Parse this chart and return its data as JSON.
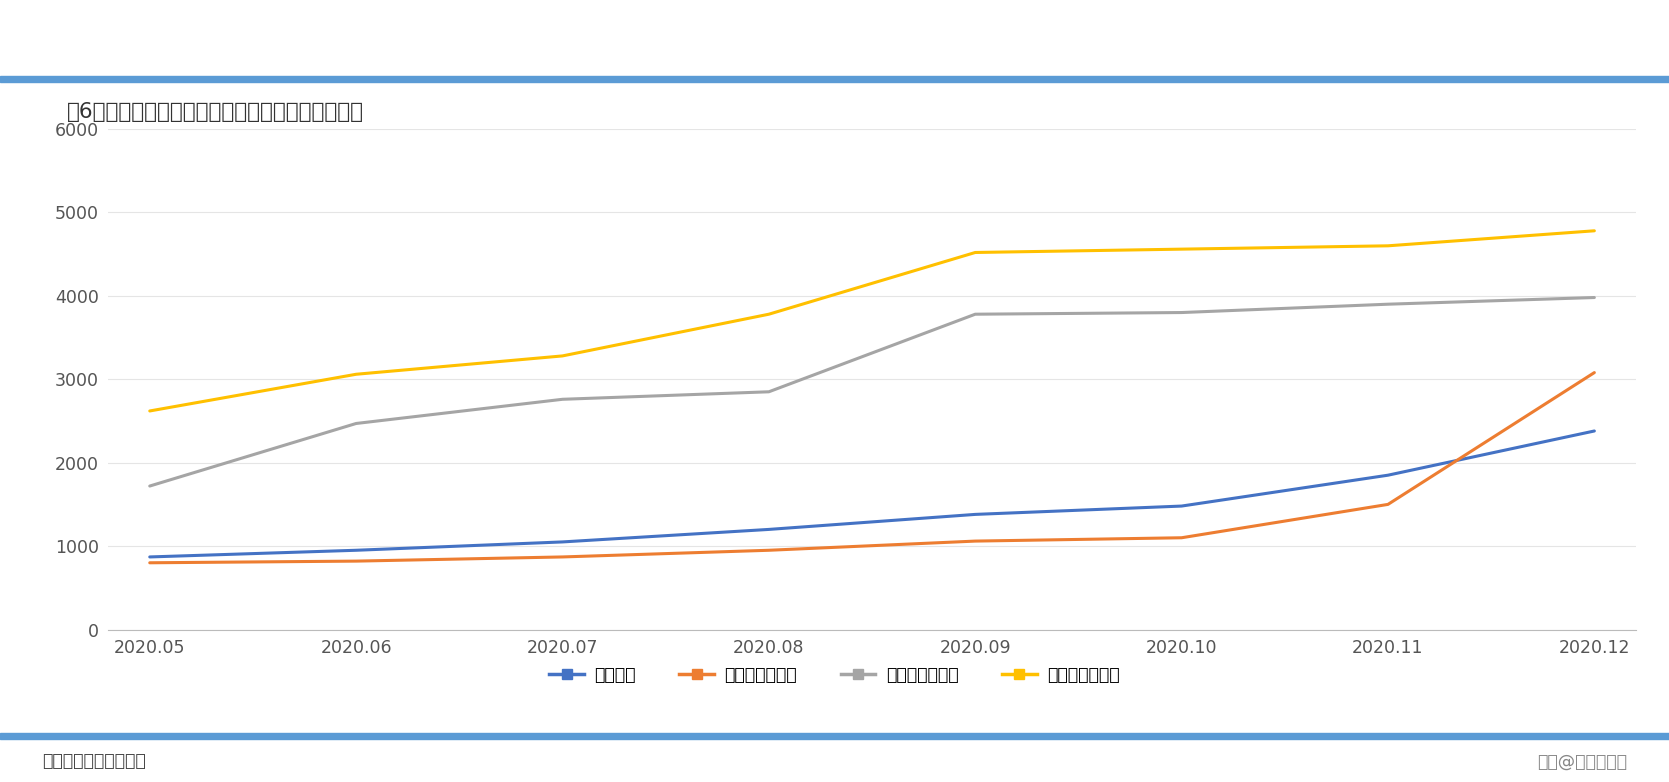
{
  "title": "图6：海外需求增加，上海出口集装箱运价指数高涨",
  "title_color": "#333333",
  "x_labels": [
    "2020.05",
    "2020.06",
    "2020.07",
    "2020.08",
    "2020.09",
    "2020.10",
    "2020.11",
    "2020.12"
  ],
  "series": [
    {
      "name": "综合指数",
      "color": "#4472C4",
      "values": [
        870,
        950,
        1050,
        1200,
        1380,
        1480,
        1850,
        2380
      ]
    },
    {
      "name": "欧洲（基本港）",
      "color": "#ED7D31",
      "values": [
        800,
        820,
        870,
        950,
        1060,
        1100,
        1500,
        3080
      ]
    },
    {
      "name": "美西（基本港）",
      "color": "#A5A5A5",
      "values": [
        1720,
        2470,
        2760,
        2850,
        3780,
        3800,
        3900,
        3980
      ]
    },
    {
      "name": "美东（基本港）",
      "color": "#FFC000",
      "values": [
        2620,
        3060,
        3280,
        3780,
        4520,
        4560,
        4600,
        4780
      ]
    }
  ],
  "ylim": [
    0,
    6000
  ],
  "yticks": [
    0,
    1000,
    2000,
    3000,
    4000,
    5000,
    6000
  ],
  "background_color": "#FFFFFF",
  "source_text": "资料来源：交通运输部",
  "watermark_text": "头条@理性经济人",
  "footer_bar_color": "#5B9BD5",
  "line_width": 2.2,
  "top_bar_color": "#5B9BD5"
}
